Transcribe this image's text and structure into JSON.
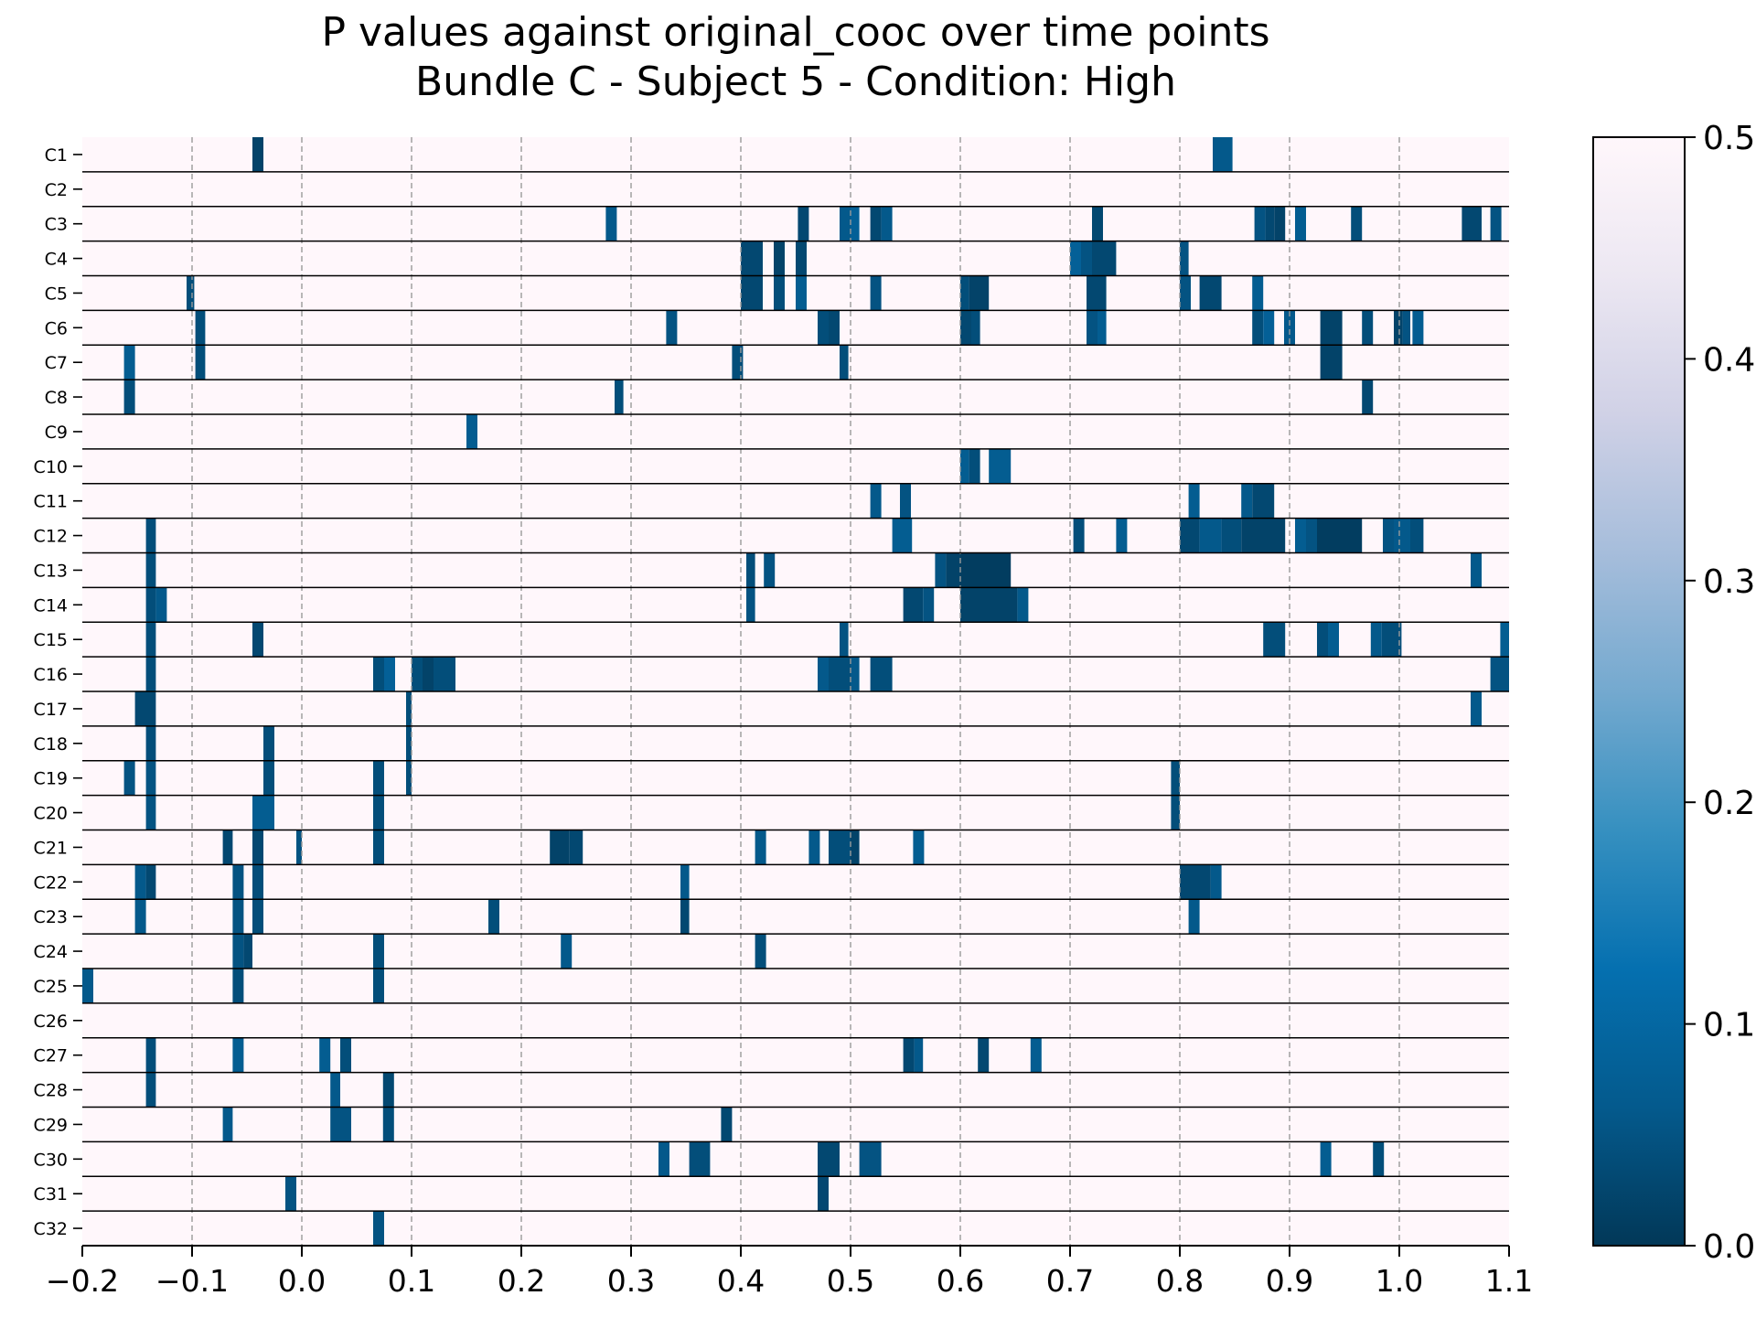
{
  "chart_data": {
    "type": "heatmap",
    "title": "P values against original_cooc over time points",
    "subtitle": "Bundle C - Subject 5 - Condition: High",
    "xlabel": "",
    "ylabel": "",
    "xlim": [
      -0.2,
      1.1
    ],
    "x_ticks": [
      "−0.2",
      "−0.1",
      "0.0",
      "0.1",
      "0.2",
      "0.3",
      "0.4",
      "0.5",
      "0.6",
      "0.7",
      "0.8",
      "0.9",
      "1.0",
      "1.1"
    ],
    "x_tick_values": [
      -0.2,
      -0.1,
      0.0,
      0.1,
      0.2,
      0.3,
      0.4,
      0.5,
      0.6,
      0.7,
      0.8,
      0.9,
      1.0,
      1.1
    ],
    "grid": "vertical dashed at x ticks",
    "colorbar": {
      "range": [
        0.0,
        0.5
      ],
      "ticks": [
        "0.0",
        "0.1",
        "0.2",
        "0.3",
        "0.4",
        "0.5"
      ],
      "tick_values": [
        0.0,
        0.1,
        0.2,
        0.3,
        0.4,
        0.5
      ],
      "colormap": "PuBu_r",
      "position": "right"
    },
    "background_value": 0.5,
    "rows": [
      {
        "label": "C1",
        "cells": [
          [
            -0.045,
            -0.035,
            0.02
          ],
          [
            0.83,
            0.848,
            0.06
          ]
        ]
      },
      {
        "label": "C2",
        "cells": []
      },
      {
        "label": "C3",
        "cells": [
          [
            0.277,
            0.287,
            0.06
          ],
          [
            0.452,
            0.462,
            0.03
          ],
          [
            0.49,
            0.5,
            0.06
          ],
          [
            0.5,
            0.508,
            0.08
          ],
          [
            0.518,
            0.528,
            0.03
          ],
          [
            0.528,
            0.538,
            0.06
          ],
          [
            0.72,
            0.73,
            0.03
          ],
          [
            0.868,
            0.878,
            0.05
          ],
          [
            0.878,
            0.886,
            0.03
          ],
          [
            0.886,
            0.896,
            0.02
          ],
          [
            0.905,
            0.915,
            0.07
          ],
          [
            0.956,
            0.966,
            0.04
          ],
          [
            1.057,
            1.075,
            0.03
          ],
          [
            1.083,
            1.093,
            0.05
          ]
        ]
      },
      {
        "label": "C4",
        "cells": [
          [
            0.4,
            0.42,
            0.03
          ],
          [
            0.43,
            0.44,
            0.02
          ],
          [
            0.45,
            0.46,
            0.03
          ],
          [
            0.7,
            0.71,
            0.08
          ],
          [
            0.71,
            0.72,
            0.05
          ],
          [
            0.72,
            0.742,
            0.03
          ],
          [
            0.8,
            0.808,
            0.05
          ]
        ]
      },
      {
        "label": "C5",
        "cells": [
          [
            -0.105,
            -0.098,
            0.04
          ],
          [
            0.4,
            0.42,
            0.03
          ],
          [
            0.43,
            0.44,
            0.04
          ],
          [
            0.45,
            0.46,
            0.07
          ],
          [
            0.518,
            0.528,
            0.05
          ],
          [
            0.6,
            0.608,
            0.04
          ],
          [
            0.608,
            0.626,
            0.02
          ],
          [
            0.715,
            0.733,
            0.03
          ],
          [
            0.8,
            0.81,
            0.05
          ],
          [
            0.818,
            0.838,
            0.03
          ],
          [
            0.866,
            0.876,
            0.07
          ]
        ]
      },
      {
        "label": "C6",
        "cells": [
          [
            -0.097,
            -0.088,
            0.04
          ],
          [
            0.332,
            0.342,
            0.05
          ],
          [
            0.47,
            0.48,
            0.04
          ],
          [
            0.48,
            0.49,
            0.03
          ],
          [
            0.6,
            0.61,
            0.03
          ],
          [
            0.61,
            0.618,
            0.04
          ],
          [
            0.715,
            0.725,
            0.05
          ],
          [
            0.725,
            0.733,
            0.07
          ],
          [
            0.866,
            0.876,
            0.04
          ],
          [
            0.876,
            0.886,
            0.08
          ],
          [
            0.895,
            0.905,
            0.06
          ],
          [
            0.928,
            0.948,
            0.02
          ],
          [
            0.966,
            0.976,
            0.04
          ],
          [
            0.995,
            1.003,
            0.02
          ],
          [
            1.003,
            1.01,
            0.05
          ],
          [
            1.012,
            1.022,
            0.07
          ]
        ]
      },
      {
        "label": "C7",
        "cells": [
          [
            -0.162,
            -0.152,
            0.07
          ],
          [
            -0.097,
            -0.088,
            0.04
          ],
          [
            0.392,
            0.402,
            0.04
          ],
          [
            0.49,
            0.498,
            0.04
          ],
          [
            0.928,
            0.948,
            0.02
          ]
        ]
      },
      {
        "label": "C8",
        "cells": [
          [
            -0.162,
            -0.152,
            0.04
          ],
          [
            0.285,
            0.293,
            0.04
          ],
          [
            0.966,
            0.976,
            0.03
          ]
        ]
      },
      {
        "label": "C9",
        "cells": [
          [
            0.15,
            0.16,
            0.07
          ]
        ]
      },
      {
        "label": "C10",
        "cells": [
          [
            0.6,
            0.608,
            0.07
          ],
          [
            0.608,
            0.618,
            0.04
          ],
          [
            0.626,
            0.646,
            0.07
          ]
        ]
      },
      {
        "label": "C11",
        "cells": [
          [
            0.518,
            0.528,
            0.06
          ],
          [
            0.545,
            0.555,
            0.05
          ],
          [
            0.808,
            0.818,
            0.07
          ],
          [
            0.856,
            0.866,
            0.06
          ],
          [
            0.866,
            0.886,
            0.03
          ]
        ]
      },
      {
        "label": "C12",
        "cells": [
          [
            -0.142,
            -0.133,
            0.04
          ],
          [
            0.538,
            0.556,
            0.07
          ],
          [
            0.703,
            0.713,
            0.04
          ],
          [
            0.742,
            0.752,
            0.07
          ],
          [
            0.8,
            0.818,
            0.03
          ],
          [
            0.818,
            0.838,
            0.06
          ],
          [
            0.838,
            0.856,
            0.04
          ],
          [
            0.856,
            0.896,
            0.02
          ],
          [
            0.905,
            0.915,
            0.07
          ],
          [
            0.915,
            0.925,
            0.05
          ],
          [
            0.925,
            0.966,
            0.01
          ],
          [
            0.985,
            0.995,
            0.05
          ],
          [
            0.995,
            1.01,
            0.06
          ],
          [
            1.01,
            1.022,
            0.04
          ]
        ]
      },
      {
        "label": "C13",
        "cells": [
          [
            -0.142,
            -0.133,
            0.04
          ],
          [
            0.405,
            0.413,
            0.04
          ],
          [
            0.421,
            0.431,
            0.05
          ],
          [
            0.577,
            0.587,
            0.05
          ],
          [
            0.587,
            0.6,
            0.02
          ],
          [
            0.6,
            0.646,
            0.01
          ],
          [
            1.065,
            1.075,
            0.06
          ]
        ]
      },
      {
        "label": "C14",
        "cells": [
          [
            -0.142,
            -0.133,
            0.04
          ],
          [
            -0.133,
            -0.123,
            0.06
          ],
          [
            0.405,
            0.413,
            0.05
          ],
          [
            0.548,
            0.566,
            0.03
          ],
          [
            0.566,
            0.576,
            0.05
          ],
          [
            0.6,
            0.652,
            0.02
          ],
          [
            0.652,
            0.662,
            0.06
          ]
        ]
      },
      {
        "label": "C15",
        "cells": [
          [
            -0.142,
            -0.133,
            0.04
          ],
          [
            -0.045,
            -0.035,
            0.03
          ],
          [
            0.49,
            0.498,
            0.05
          ],
          [
            0.876,
            0.896,
            0.04
          ],
          [
            0.925,
            0.935,
            0.04
          ],
          [
            0.935,
            0.945,
            0.07
          ],
          [
            0.974,
            0.984,
            0.06
          ],
          [
            0.984,
            1.002,
            0.04
          ],
          [
            1.092,
            1.1,
            0.07
          ]
        ]
      },
      {
        "label": "C16",
        "cells": [
          [
            -0.142,
            -0.133,
            0.04
          ],
          [
            0.065,
            0.075,
            0.04
          ],
          [
            0.075,
            0.085,
            0.08
          ],
          [
            0.1,
            0.11,
            0.04
          ],
          [
            0.11,
            0.12,
            0.02
          ],
          [
            0.12,
            0.14,
            0.04
          ],
          [
            0.47,
            0.48,
            0.06
          ],
          [
            0.48,
            0.5,
            0.04
          ],
          [
            0.5,
            0.508,
            0.06
          ],
          [
            0.518,
            0.538,
            0.04
          ],
          [
            1.083,
            1.1,
            0.05
          ]
        ]
      },
      {
        "label": "C17",
        "cells": [
          [
            -0.152,
            -0.133,
            0.03
          ],
          [
            0.095,
            0.1,
            0.04
          ],
          [
            1.065,
            1.075,
            0.06
          ]
        ]
      },
      {
        "label": "C18",
        "cells": [
          [
            -0.142,
            -0.133,
            0.04
          ],
          [
            -0.035,
            -0.025,
            0.04
          ],
          [
            0.095,
            0.1,
            0.04
          ]
        ]
      },
      {
        "label": "C19",
        "cells": [
          [
            -0.162,
            -0.152,
            0.05
          ],
          [
            -0.142,
            -0.133,
            0.05
          ],
          [
            -0.035,
            -0.025,
            0.04
          ],
          [
            0.065,
            0.075,
            0.04
          ],
          [
            0.095,
            0.1,
            0.04
          ],
          [
            0.792,
            0.8,
            0.04
          ]
        ]
      },
      {
        "label": "C20",
        "cells": [
          [
            -0.142,
            -0.133,
            0.05
          ],
          [
            -0.045,
            -0.025,
            0.07
          ],
          [
            0.065,
            0.075,
            0.04
          ],
          [
            0.792,
            0.8,
            0.04
          ]
        ]
      },
      {
        "label": "C21",
        "cells": [
          [
            -0.072,
            -0.063,
            0.03
          ],
          [
            -0.045,
            -0.035,
            0.03
          ],
          [
            -0.005,
            0.0,
            0.05
          ],
          [
            0.065,
            0.075,
            0.04
          ],
          [
            0.226,
            0.244,
            0.02
          ],
          [
            0.244,
            0.256,
            0.03
          ],
          [
            0.413,
            0.423,
            0.06
          ],
          [
            0.462,
            0.472,
            0.06
          ],
          [
            0.48,
            0.5,
            0.04
          ],
          [
            0.5,
            0.508,
            0.02
          ],
          [
            0.557,
            0.567,
            0.07
          ]
        ]
      },
      {
        "label": "C22",
        "cells": [
          [
            -0.152,
            -0.142,
            0.06
          ],
          [
            -0.142,
            -0.133,
            0.03
          ],
          [
            -0.063,
            -0.053,
            0.05
          ],
          [
            -0.045,
            -0.035,
            0.04
          ],
          [
            0.345,
            0.353,
            0.06
          ],
          [
            0.8,
            0.828,
            0.03
          ],
          [
            0.828,
            0.838,
            0.06
          ]
        ]
      },
      {
        "label": "C23",
        "cells": [
          [
            -0.152,
            -0.142,
            0.06
          ],
          [
            -0.063,
            -0.053,
            0.05
          ],
          [
            -0.045,
            -0.035,
            0.04
          ],
          [
            0.17,
            0.18,
            0.04
          ],
          [
            0.345,
            0.353,
            0.03
          ],
          [
            0.808,
            0.818,
            0.06
          ]
        ]
      },
      {
        "label": "C24",
        "cells": [
          [
            -0.063,
            -0.053,
            0.05
          ],
          [
            -0.053,
            -0.045,
            0.03
          ],
          [
            0.065,
            0.075,
            0.04
          ],
          [
            0.236,
            0.246,
            0.06
          ],
          [
            0.413,
            0.423,
            0.04
          ]
        ]
      },
      {
        "label": "C25",
        "cells": [
          [
            -0.2,
            -0.19,
            0.06
          ],
          [
            -0.063,
            -0.053,
            0.04
          ],
          [
            0.065,
            0.075,
            0.04
          ]
        ]
      },
      {
        "label": "C26",
        "cells": []
      },
      {
        "label": "C27",
        "cells": [
          [
            -0.142,
            -0.133,
            0.04
          ],
          [
            -0.063,
            -0.053,
            0.07
          ],
          [
            0.016,
            0.026,
            0.07
          ],
          [
            0.035,
            0.045,
            0.04
          ],
          [
            0.548,
            0.558,
            0.03
          ],
          [
            0.558,
            0.566,
            0.06
          ],
          [
            0.616,
            0.626,
            0.03
          ],
          [
            0.664,
            0.674,
            0.07
          ]
        ]
      },
      {
        "label": "C28",
        "cells": [
          [
            -0.142,
            -0.133,
            0.04
          ],
          [
            0.026,
            0.035,
            0.06
          ],
          [
            0.074,
            0.084,
            0.03
          ]
        ]
      },
      {
        "label": "C29",
        "cells": [
          [
            -0.072,
            -0.063,
            0.06
          ],
          [
            0.026,
            0.045,
            0.05
          ],
          [
            0.074,
            0.084,
            0.04
          ],
          [
            0.382,
            0.392,
            0.03
          ]
        ]
      },
      {
        "label": "C30",
        "cells": [
          [
            0.325,
            0.335,
            0.06
          ],
          [
            0.353,
            0.372,
            0.04
          ],
          [
            0.47,
            0.49,
            0.03
          ],
          [
            0.508,
            0.528,
            0.05
          ],
          [
            0.928,
            0.938,
            0.07
          ],
          [
            0.976,
            0.986,
            0.04
          ]
        ]
      },
      {
        "label": "C31",
        "cells": [
          [
            -0.015,
            -0.005,
            0.05
          ],
          [
            0.47,
            0.48,
            0.03
          ]
        ]
      },
      {
        "label": "C32",
        "cells": [
          [
            0.065,
            0.075,
            0.05
          ]
        ]
      }
    ]
  }
}
